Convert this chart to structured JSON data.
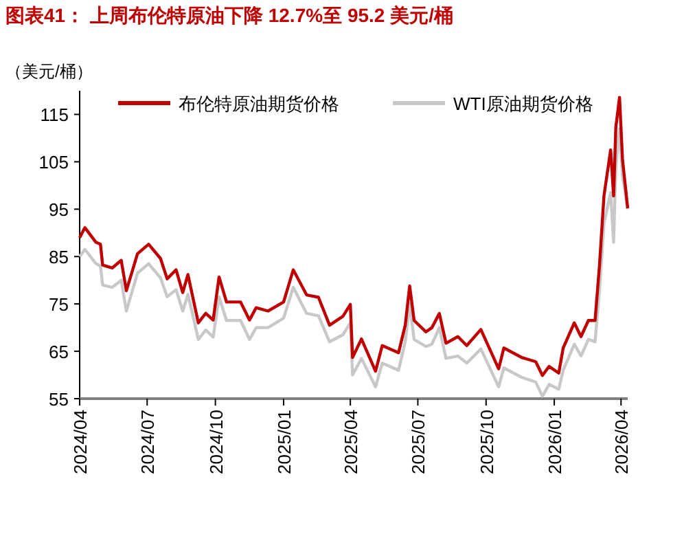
{
  "chart_data": {
    "type": "line",
    "title": "图表41： 上周布伦特原油下降 12.7%至 95.2 美元/桶",
    "ylabel": "（美元/桶）",
    "x": [
      "2024-04-01",
      "2024-04-08",
      "2024-04-23",
      "2024-04-29",
      "2024-05-02",
      "2024-05-15",
      "2024-05-27",
      "2024-06-03",
      "2024-06-18",
      "2024-07-03",
      "2024-07-19",
      "2024-07-28",
      "2024-08-09",
      "2024-08-18",
      "2024-08-25",
      "2024-09-08",
      "2024-09-18",
      "2024-09-28",
      "2024-10-06",
      "2024-10-16",
      "2024-11-04",
      "2024-11-16",
      "2024-11-25",
      "2024-12-11",
      "2025-01-01",
      "2025-01-14",
      "2025-02-01",
      "2025-02-17",
      "2025-03-04",
      "2025-03-22",
      "2025-04-01",
      "2025-04-04",
      "2025-04-16",
      "2025-05-05",
      "2025-05-14",
      "2025-06-05",
      "2025-06-14",
      "2025-06-20",
      "2025-06-26",
      "2025-07-12",
      "2025-07-20",
      "2025-07-30",
      "2025-08-08",
      "2025-08-24",
      "2025-09-05",
      "2025-09-24",
      "2025-10-18",
      "2025-10-25",
      "2025-11-18",
      "2025-12-07",
      "2025-12-16",
      "2025-12-25",
      "2026-01-07",
      "2026-01-13",
      "2026-01-28",
      "2026-02-06",
      "2026-02-16",
      "2026-02-25",
      "2026-03-03",
      "2026-03-09",
      "2026-03-18",
      "2026-03-22",
      "2026-03-25",
      "2026-03-30",
      "2026-04-03",
      "2026-04-10"
    ],
    "series": [
      {
        "name": "布伦特原油期货价格",
        "color": "#c00000",
        "values": [
          89.0,
          91.1,
          88.0,
          87.6,
          83.2,
          82.6,
          84.2,
          77.8,
          85.6,
          87.6,
          84.6,
          80.3,
          82.2,
          77.4,
          81.2,
          71.0,
          73.0,
          71.6,
          80.7,
          75.4,
          75.4,
          71.6,
          74.2,
          73.5,
          75.4,
          82.2,
          76.9,
          76.4,
          70.5,
          72.4,
          74.9,
          63.7,
          67.6,
          60.8,
          66.2,
          64.7,
          70.5,
          78.8,
          71.5,
          69.1,
          70.0,
          73.0,
          66.7,
          68.1,
          66.2,
          69.6,
          61.3,
          65.7,
          63.7,
          62.8,
          59.9,
          61.8,
          60.4,
          65.7,
          71.0,
          68.1,
          71.5,
          71.5,
          83.2,
          97.8,
          107.5,
          97.8,
          112.3,
          118.6,
          105.5,
          95.2
        ]
      },
      {
        "name": "WTI原油期货价格",
        "color": "#c8c8c8",
        "values": [
          85.0,
          86.5,
          83.5,
          83.0,
          79.0,
          78.5,
          80.0,
          73.5,
          81.5,
          83.5,
          80.5,
          76.5,
          78.0,
          73.5,
          77.0,
          67.5,
          69.5,
          68.0,
          76.5,
          71.5,
          71.5,
          67.5,
          70.0,
          70.0,
          72.0,
          78.5,
          73.0,
          72.5,
          67.0,
          68.5,
          71.0,
          60.0,
          63.5,
          57.5,
          62.5,
          61.0,
          67.0,
          75.0,
          67.5,
          66.0,
          66.5,
          70.0,
          63.5,
          64.0,
          62.5,
          65.5,
          57.5,
          61.5,
          59.5,
          58.5,
          55.5,
          58.0,
          57.0,
          61.0,
          66.5,
          64.0,
          67.5,
          67.0,
          78.0,
          92.0,
          98.5,
          88.0,
          104.0,
          112.0,
          102.0,
          95.0
        ]
      }
    ],
    "xlim": [
      "2024-04-01",
      "2026-04-10"
    ],
    "xticks": [
      {
        "value": "2024-04-01",
        "label": "2024/04"
      },
      {
        "value": "2024-07-01",
        "label": "2024/07"
      },
      {
        "value": "2024-10-01",
        "label": "2024/10"
      },
      {
        "value": "2025-01-01",
        "label": "2025/01"
      },
      {
        "value": "2025-04-01",
        "label": "2025/04"
      },
      {
        "value": "2025-07-01",
        "label": "2025/07"
      },
      {
        "value": "2025-10-01",
        "label": "2025/10"
      },
      {
        "value": "2026-01-01",
        "label": "2026/01"
      },
      {
        "value": "2026-04-01",
        "label": "2026/04"
      }
    ],
    "ylim": [
      55,
      120
    ],
    "yticks": [
      55,
      65,
      75,
      85,
      95,
      105,
      115
    ],
    "legend": "top",
    "grid": false,
    "marker": "none",
    "line_style": "solid"
  }
}
